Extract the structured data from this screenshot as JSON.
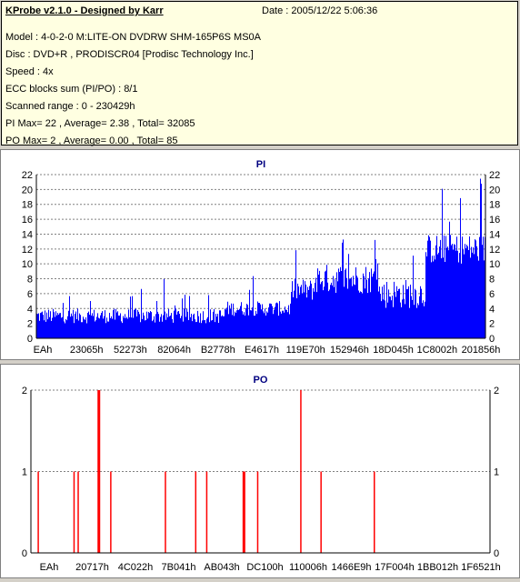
{
  "header": {
    "title": "KProbe v2.1.0 - Designed by Karr",
    "date": "Date : 2005/12/22 5:06:36",
    "lines": [
      "Model : 4-0-2-0 M:LITE-ON DVDRW SHM-165P6S MS0A",
      "Disc : DVD+R , PRODISCR04 [Prodisc Technology Inc.]",
      "Speed : 4x",
      "ECC blocks sum (PI/PO) : 8/1",
      "Scanned range : 0 - 230429h",
      "PI Max= 22 , Average= 2.38 , Total= 32085",
      "PO Max= 2 , Average= 0.00 , Total= 85"
    ]
  },
  "colors": {
    "pi": "#0000ff",
    "po": "#ff0000",
    "title": "#000080",
    "grid": "#808080",
    "panel_bg": "#ffffe1"
  },
  "chart_data": [
    {
      "type": "bar",
      "title": "PI",
      "ylim": [
        0,
        22
      ],
      "yticks": [
        0,
        2,
        4,
        6,
        8,
        10,
        12,
        14,
        16,
        18,
        20,
        22
      ],
      "xlim": [
        0,
        230429
      ],
      "xticks": [
        "EAh",
        "23065h",
        "52273h",
        "82064h",
        "B2778h",
        "E4617h",
        "119E70h",
        "152946h",
        "18D045h",
        "1C8002h",
        "201856h"
      ],
      "grid": true,
      "segments": [
        {
          "x": [
            0,
            0.08
          ],
          "base": [
            2,
            4
          ],
          "max": 7
        },
        {
          "x": [
            0.08,
            0.32
          ],
          "base": [
            2,
            4
          ],
          "max": 8
        },
        {
          "x": [
            0.32,
            0.42
          ],
          "base": [
            2,
            4
          ],
          "max": 6
        },
        {
          "x": [
            0.42,
            0.57
          ],
          "base": [
            3,
            5
          ],
          "max": 9
        },
        {
          "x": [
            0.57,
            0.62
          ],
          "base": [
            5,
            8
          ],
          "max": 12
        },
        {
          "x": [
            0.62,
            0.76
          ],
          "base": [
            6,
            10
          ],
          "max": 16
        },
        {
          "x": [
            0.76,
            0.87
          ],
          "base": [
            4,
            8
          ],
          "max": 12
        },
        {
          "x": [
            0.87,
            1.0
          ],
          "base": [
            10,
            14
          ],
          "max": 22
        }
      ]
    },
    {
      "type": "bar",
      "title": "PO",
      "ylim": [
        0,
        2
      ],
      "yticks": [
        0,
        1,
        2
      ],
      "xlim": [
        0,
        230429
      ],
      "xticks": [
        "EAh",
        "20717h",
        "4C022h",
        "7B041h",
        "AB043h",
        "DC100h",
        "110006h",
        "1466E9h",
        "17F004h",
        "1BB012h",
        "1F6521h"
      ],
      "grid": true,
      "spikes": [
        {
          "x": 0.016,
          "value": 1
        },
        {
          "x": 0.094,
          "value": 1
        },
        {
          "x": 0.103,
          "value": 1
        },
        {
          "x": 0.148,
          "value": 2,
          "wide": true
        },
        {
          "x": 0.174,
          "value": 1
        },
        {
          "x": 0.293,
          "value": 1
        },
        {
          "x": 0.359,
          "value": 1
        },
        {
          "x": 0.383,
          "value": 1
        },
        {
          "x": 0.464,
          "value": 1,
          "wide": true
        },
        {
          "x": 0.494,
          "value": 1
        },
        {
          "x": 0.588,
          "value": 2
        },
        {
          "x": 0.632,
          "value": 1
        },
        {
          "x": 0.748,
          "value": 1
        }
      ]
    }
  ]
}
